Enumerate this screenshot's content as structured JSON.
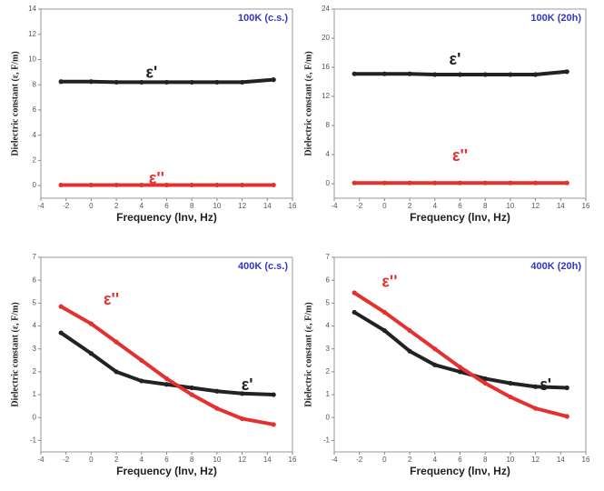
{
  "chart_data": [
    {
      "type": "line",
      "title": "100K (c.s.)",
      "x_label": "Frequency (lnν, Hz)",
      "y_label": "Dielectric constant (ε, F/m)",
      "x": [
        -2.4,
        0,
        2,
        4,
        6,
        8,
        10,
        12,
        14.5
      ],
      "series": [
        {
          "name": "ε'",
          "color": "#222222",
          "values": [
            8.25,
            8.25,
            8.2,
            8.2,
            8.2,
            8.2,
            8.2,
            8.2,
            8.4
          ]
        },
        {
          "name": "ε''",
          "color": "#e53030",
          "values": [
            0.05,
            0.05,
            0.05,
            0.05,
            0.05,
            0.05,
            0.05,
            0.05,
            0.05
          ]
        }
      ],
      "xlim": [
        -4,
        16
      ],
      "xticks": [
        -4,
        -2,
        0,
        2,
        4,
        6,
        8,
        10,
        12,
        14,
        16
      ],
      "ylim": [
        -1,
        14
      ],
      "yticks": [
        0,
        2,
        4,
        6,
        8,
        10,
        12,
        14
      ]
    },
    {
      "type": "line",
      "title": "100K (20h)",
      "x_label": "Frequency (lnν, Hz)",
      "y_label": "Dielectric constant (ε, F/m)",
      "x": [
        -2.4,
        0,
        2,
        4,
        6,
        8,
        10,
        12,
        14.5
      ],
      "series": [
        {
          "name": "ε'",
          "color": "#222222",
          "values": [
            15.1,
            15.1,
            15.1,
            15.0,
            15.0,
            15.0,
            15.0,
            15.0,
            15.4
          ]
        },
        {
          "name": "ε''",
          "color": "#e53030",
          "values": [
            0.1,
            0.1,
            0.1,
            0.1,
            0.1,
            0.1,
            0.1,
            0.1,
            0.1
          ]
        }
      ],
      "xlim": [
        -4,
        16
      ],
      "xticks": [
        -4,
        -2,
        0,
        2,
        4,
        6,
        8,
        10,
        12,
        14,
        16
      ],
      "ylim": [
        -2,
        24
      ],
      "yticks": [
        0,
        4,
        8,
        12,
        16,
        20,
        24
      ]
    },
    {
      "type": "line",
      "title": "400K (c.s.)",
      "x_label": "Frequency (lnν, Hz)",
      "y_label": "Dielectric constant (ε, F/m)",
      "x": [
        -2.4,
        0,
        2,
        4,
        6,
        8,
        10,
        12,
        14.5
      ],
      "series": [
        {
          "name": "ε'",
          "color": "#222222",
          "values": [
            3.7,
            2.8,
            2.0,
            1.6,
            1.45,
            1.3,
            1.15,
            1.05,
            1.0
          ]
        },
        {
          "name": "ε''",
          "color": "#e53030",
          "values": [
            4.85,
            4.1,
            3.3,
            2.5,
            1.7,
            1.0,
            0.4,
            -0.05,
            -0.3
          ]
        }
      ],
      "xlim": [
        -4,
        16
      ],
      "xticks": [
        -4,
        -2,
        0,
        2,
        4,
        6,
        8,
        10,
        12,
        14,
        16
      ],
      "ylim": [
        -1.5,
        7
      ],
      "yticks": [
        -1,
        0,
        1,
        2,
        3,
        4,
        5,
        6,
        7
      ]
    },
    {
      "type": "line",
      "title": "400K (20h)",
      "x_label": "Frequency (lnν, Hz)",
      "y_label": "Dielectric constant (ε, F/m)",
      "x": [
        -2.4,
        0,
        2,
        4,
        6,
        8,
        10,
        12,
        14.5
      ],
      "series": [
        {
          "name": "ε'",
          "color": "#222222",
          "values": [
            4.6,
            3.8,
            2.9,
            2.3,
            2.0,
            1.7,
            1.5,
            1.35,
            1.3
          ]
        },
        {
          "name": "ε''",
          "color": "#e53030",
          "values": [
            5.45,
            4.6,
            3.8,
            3.0,
            2.2,
            1.5,
            0.9,
            0.4,
            0.05
          ]
        }
      ],
      "xlim": [
        -4,
        16
      ],
      "xticks": [
        -4,
        -2,
        0,
        2,
        4,
        6,
        8,
        10,
        12,
        14,
        16
      ],
      "ylim": [
        -1.5,
        7
      ],
      "yticks": [
        -1,
        0,
        1,
        2,
        3,
        4,
        5,
        6,
        7
      ]
    }
  ]
}
